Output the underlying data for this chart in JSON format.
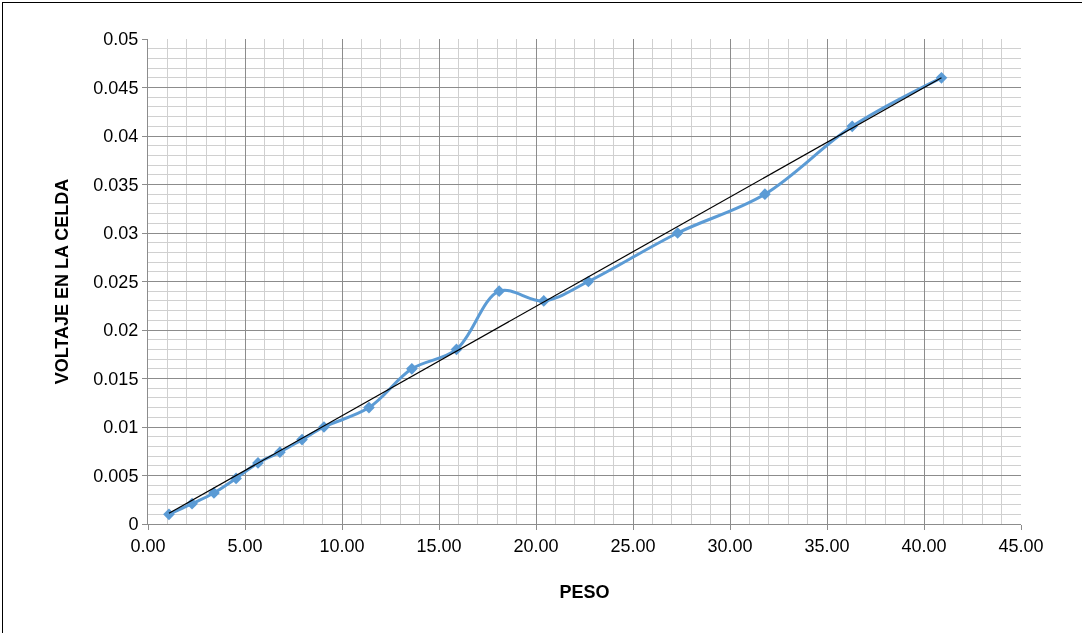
{
  "chart_data": {
    "type": "line",
    "xlabel": "PESO",
    "ylabel": "VOLTAJE EN LA CELDA",
    "series": [
      {
        "type": "line",
        "color": "#5b9bd5",
        "marker": "diamond",
        "x": [
          1.08,
          2.27,
          3.4,
          4.54,
          5.67,
          6.8,
          7.94,
          9.07,
          11.39,
          13.6,
          15.9,
          18.1,
          20.4,
          22.7,
          27.3,
          31.8,
          36.3,
          40.9
        ],
        "values": [
          0.001,
          0.0021,
          0.0032,
          0.0047,
          0.0063,
          0.0074,
          0.0087,
          0.01,
          0.012,
          0.016,
          0.018,
          0.024,
          0.023,
          0.025,
          0.03,
          0.034,
          0.041,
          0.046
        ]
      },
      {
        "type": "line",
        "color": "#000000",
        "marker": "none",
        "x": [
          1.08,
          40.9
        ],
        "values": [
          0.0011,
          0.046
        ]
      }
    ],
    "xlim": [
      0,
      45
    ],
    "xticks": [
      {
        "value": 0,
        "label": "0.00"
      },
      {
        "value": 5,
        "label": "5.00"
      },
      {
        "value": 10,
        "label": "10.00"
      },
      {
        "value": 15,
        "label": "15.00"
      },
      {
        "value": 20,
        "label": "20.00"
      },
      {
        "value": 25,
        "label": "25.00"
      },
      {
        "value": 30,
        "label": "30.00"
      },
      {
        "value": 35,
        "label": "35.00"
      },
      {
        "value": 40,
        "label": "40.00"
      },
      {
        "value": 45,
        "label": "45.00"
      }
    ],
    "ylim": [
      0,
      0.05
    ],
    "yticks": [
      0,
      0.005,
      0.01,
      0.015,
      0.02,
      0.025,
      0.03,
      0.035,
      0.04,
      0.045,
      0.05
    ],
    "grid": true
  }
}
